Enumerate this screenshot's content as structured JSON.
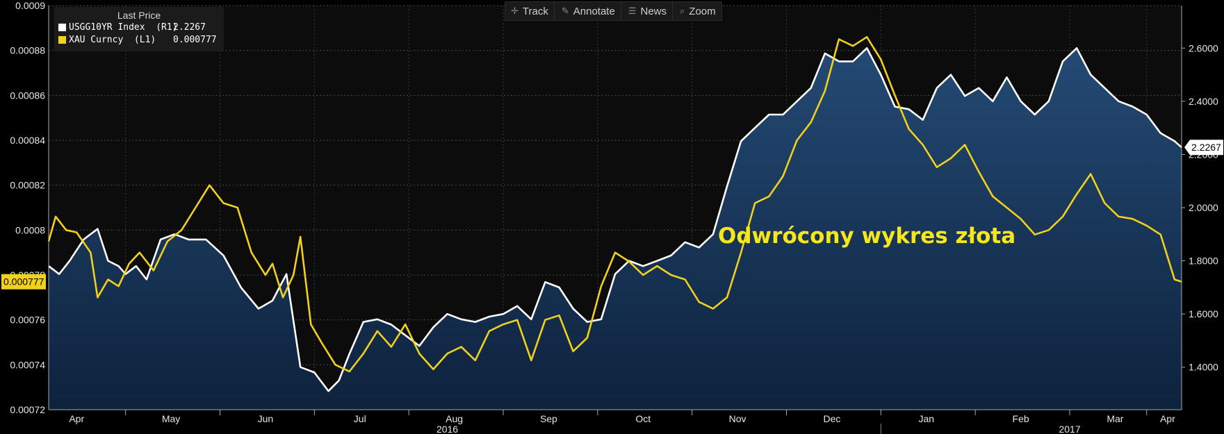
{
  "toolbar": {
    "items": [
      {
        "icon": "crosshair-icon",
        "label": "Track"
      },
      {
        "icon": "pencil-icon",
        "label": "Annotate"
      },
      {
        "icon": "news-icon",
        "label": "News"
      },
      {
        "icon": "zoom-icon",
        "label": "Zoom"
      }
    ]
  },
  "legend": {
    "title": "Last Price",
    "entries": [
      {
        "name": "USGG10YR Index  (R1)",
        "value": "2.2267",
        "color": "#ffffff"
      },
      {
        "name": "XAU Curncy  (L1)",
        "value": "0.000777",
        "color": "#f2d11d"
      }
    ]
  },
  "annotation": "Odwrócony wykres złota",
  "chart_data": {
    "type": "line",
    "x_labels": [
      "Apr",
      "May",
      "Jun",
      "Jul",
      "Aug",
      "Sep",
      "Oct",
      "Nov",
      "Dec",
      "Jan",
      "Feb",
      "Mar",
      "Apr"
    ],
    "year_labels": [
      "2016",
      "2017"
    ],
    "y_left": {
      "ylim": [
        0.00072,
        0.0009
      ],
      "ticks": [
        "0.00072",
        "0.00074",
        "0.00076",
        "0.00078",
        "0.0008",
        "0.00082",
        "0.00084",
        "0.00086",
        "0.00088",
        "0.0009"
      ],
      "last_label": "0.000777"
    },
    "y_right": {
      "ylim": [
        1.24,
        2.76
      ],
      "ticks": [
        "1.4000",
        "1.6000",
        "1.8000",
        "2.0000",
        "2.2000",
        "2.4000",
        "2.6000"
      ],
      "last_label": "2.2267"
    },
    "grid": true,
    "legend_position": "top-left",
    "series": [
      {
        "name": "USGG10YR Index",
        "axis": "right",
        "color": "#ffffff",
        "fill": true,
        "points": [
          [
            0,
            1.78
          ],
          [
            3,
            1.75
          ],
          [
            6,
            1.8
          ],
          [
            10,
            1.88
          ],
          [
            14,
            1.92
          ],
          [
            17,
            1.8
          ],
          [
            20,
            1.78
          ],
          [
            22,
            1.75
          ],
          [
            25,
            1.78
          ],
          [
            28,
            1.73
          ],
          [
            32,
            1.88
          ],
          [
            36,
            1.9
          ],
          [
            40,
            1.88
          ],
          [
            45,
            1.88
          ],
          [
            50,
            1.82
          ],
          [
            55,
            1.7
          ],
          [
            60,
            1.62
          ],
          [
            64,
            1.65
          ],
          [
            68,
            1.75
          ],
          [
            72,
            1.4
          ],
          [
            76,
            1.38
          ],
          [
            80,
            1.31
          ],
          [
            83,
            1.35
          ],
          [
            86,
            1.45
          ],
          [
            90,
            1.57
          ],
          [
            94,
            1.58
          ],
          [
            98,
            1.56
          ],
          [
            102,
            1.52
          ],
          [
            106,
            1.48
          ],
          [
            110,
            1.55
          ],
          [
            114,
            1.6
          ],
          [
            118,
            1.58
          ],
          [
            122,
            1.57
          ],
          [
            126,
            1.59
          ],
          [
            130,
            1.6
          ],
          [
            134,
            1.63
          ],
          [
            138,
            1.58
          ],
          [
            142,
            1.72
          ],
          [
            146,
            1.7
          ],
          [
            150,
            1.62
          ],
          [
            154,
            1.57
          ],
          [
            158,
            1.58
          ],
          [
            162,
            1.75
          ],
          [
            166,
            1.8
          ],
          [
            170,
            1.78
          ],
          [
            174,
            1.8
          ],
          [
            178,
            1.82
          ],
          [
            182,
            1.87
          ],
          [
            186,
            1.85
          ],
          [
            190,
            1.9
          ],
          [
            194,
            2.08
          ],
          [
            198,
            2.25
          ],
          [
            202,
            2.3
          ],
          [
            206,
            2.35
          ],
          [
            210,
            2.35
          ],
          [
            214,
            2.4
          ],
          [
            218,
            2.45
          ],
          [
            222,
            2.58
          ],
          [
            226,
            2.55
          ],
          [
            230,
            2.55
          ],
          [
            234,
            2.6
          ],
          [
            238,
            2.5
          ],
          [
            242,
            2.38
          ],
          [
            246,
            2.37
          ],
          [
            250,
            2.33
          ],
          [
            254,
            2.45
          ],
          [
            258,
            2.5
          ],
          [
            262,
            2.42
          ],
          [
            266,
            2.45
          ],
          [
            270,
            2.4
          ],
          [
            274,
            2.49
          ],
          [
            278,
            2.4
          ],
          [
            282,
            2.35
          ],
          [
            286,
            2.4
          ],
          [
            290,
            2.55
          ],
          [
            294,
            2.6
          ],
          [
            298,
            2.5
          ],
          [
            302,
            2.45
          ],
          [
            306,
            2.4
          ],
          [
            310,
            2.38
          ],
          [
            314,
            2.35
          ],
          [
            318,
            2.28
          ],
          [
            322,
            2.25
          ],
          [
            324,
            2.2267
          ]
        ]
      },
      {
        "name": "XAU Curncy",
        "axis": "left",
        "color": "#f2d11d",
        "fill": false,
        "points": [
          [
            0,
            0.000795
          ],
          [
            2,
            0.000806
          ],
          [
            5,
            0.0008
          ],
          [
            8,
            0.000799
          ],
          [
            12,
            0.00079
          ],
          [
            14,
            0.00077
          ],
          [
            17,
            0.000778
          ],
          [
            20,
            0.000775
          ],
          [
            23,
            0.000785
          ],
          [
            26,
            0.00079
          ],
          [
            30,
            0.000782
          ],
          [
            34,
            0.000795
          ],
          [
            38,
            0.0008
          ],
          [
            42,
            0.00081
          ],
          [
            46,
            0.00082
          ],
          [
            50,
            0.000812
          ],
          [
            54,
            0.00081
          ],
          [
            58,
            0.00079
          ],
          [
            62,
            0.00078
          ],
          [
            64,
            0.000785
          ],
          [
            67,
            0.00077
          ],
          [
            70,
            0.00078
          ],
          [
            72,
            0.000797
          ],
          [
            75,
            0.000758
          ],
          [
            78,
            0.00075
          ],
          [
            82,
            0.00074
          ],
          [
            86,
            0.000737
          ],
          [
            90,
            0.000745
          ],
          [
            94,
            0.000755
          ],
          [
            98,
            0.000748
          ],
          [
            102,
            0.000758
          ],
          [
            106,
            0.000745
          ],
          [
            110,
            0.000738
          ],
          [
            114,
            0.000745
          ],
          [
            118,
            0.000748
          ],
          [
            122,
            0.000742
          ],
          [
            126,
            0.000755
          ],
          [
            130,
            0.000758
          ],
          [
            134,
            0.00076
          ],
          [
            138,
            0.000742
          ],
          [
            142,
            0.00076
          ],
          [
            146,
            0.000762
          ],
          [
            150,
            0.000746
          ],
          [
            154,
            0.000752
          ],
          [
            158,
            0.000775
          ],
          [
            162,
            0.00079
          ],
          [
            166,
            0.000786
          ],
          [
            170,
            0.00078
          ],
          [
            174,
            0.000784
          ],
          [
            178,
            0.00078
          ],
          [
            182,
            0.000778
          ],
          [
            186,
            0.000768
          ],
          [
            190,
            0.000765
          ],
          [
            194,
            0.00077
          ],
          [
            198,
            0.00079
          ],
          [
            202,
            0.000812
          ],
          [
            206,
            0.000815
          ],
          [
            210,
            0.000824
          ],
          [
            214,
            0.00084
          ],
          [
            218,
            0.000848
          ],
          [
            222,
            0.000862
          ],
          [
            226,
            0.000885
          ],
          [
            230,
            0.000882
          ],
          [
            234,
            0.000886
          ],
          [
            238,
            0.000876
          ],
          [
            242,
            0.00086
          ],
          [
            246,
            0.000845
          ],
          [
            250,
            0.000838
          ],
          [
            254,
            0.000828
          ],
          [
            258,
            0.000832
          ],
          [
            262,
            0.000838
          ],
          [
            266,
            0.000826
          ],
          [
            270,
            0.000815
          ],
          [
            274,
            0.00081
          ],
          [
            278,
            0.000805
          ],
          [
            282,
            0.000798
          ],
          [
            286,
            0.0008
          ],
          [
            290,
            0.000806
          ],
          [
            294,
            0.000816
          ],
          [
            298,
            0.000825
          ],
          [
            302,
            0.000812
          ],
          [
            306,
            0.000806
          ],
          [
            310,
            0.000805
          ],
          [
            314,
            0.000802
          ],
          [
            318,
            0.000798
          ],
          [
            322,
            0.000778
          ],
          [
            324,
            0.000777
          ]
        ]
      }
    ]
  }
}
